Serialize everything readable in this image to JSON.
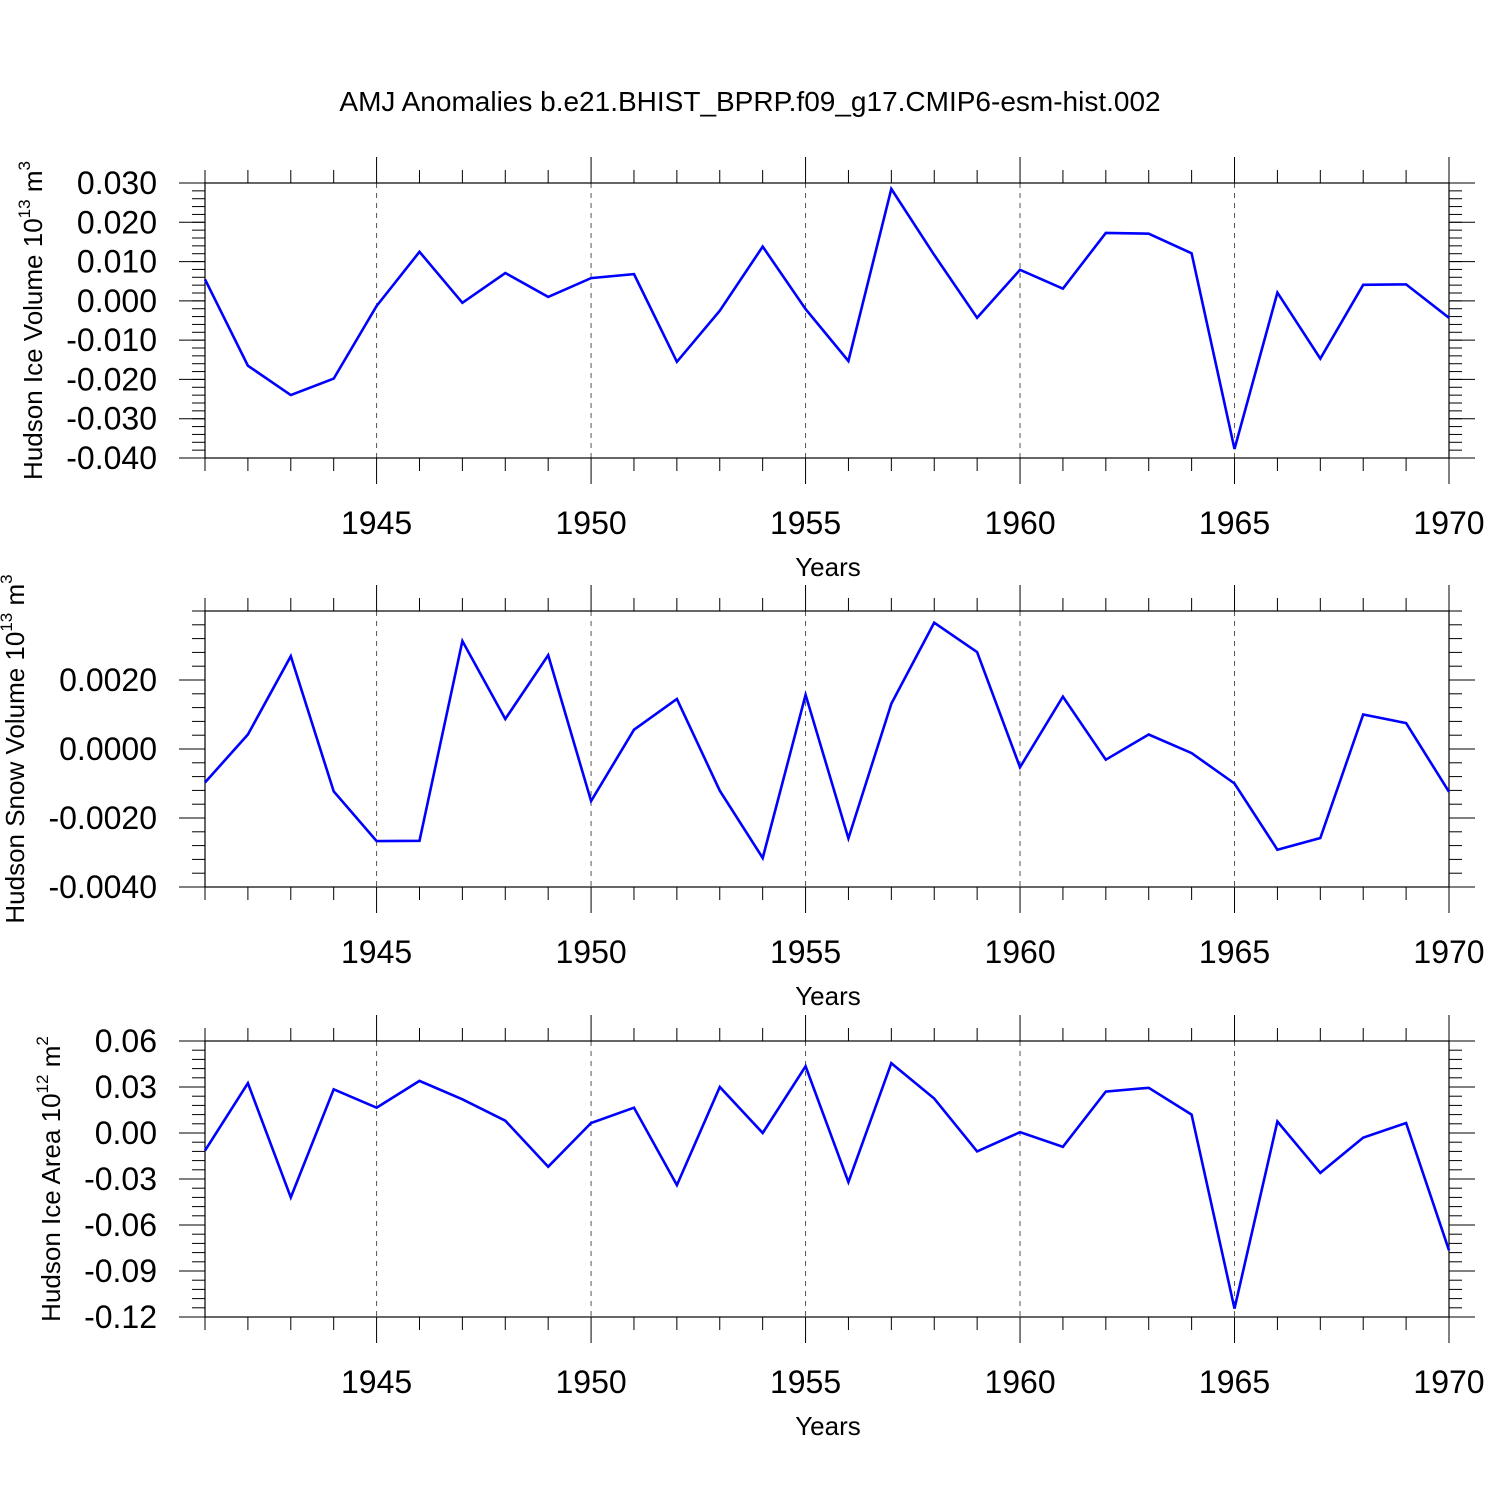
{
  "title": "AMJ Anomalies b.e21.BHIST_BPRP.f09_g17.CMIP6-esm-hist.002",
  "line_color": "#0000ff",
  "chart_data": [
    {
      "type": "line",
      "ylabel": {
        "text": "Hudson Ice Volume 10",
        "sup": "13",
        "unit": " m",
        "unit_sup": "3"
      },
      "xlabel": "Years",
      "xlim": [
        1941,
        1970
      ],
      "ylim": [
        -0.04,
        0.03
      ],
      "ytick_values": [
        -0.04,
        -0.03,
        -0.02,
        -0.01,
        0.0,
        0.01,
        0.02,
        0.03
      ],
      "ytick_labels": [
        "-0.040",
        "-0.030",
        "-0.020",
        "-0.010",
        "0.000",
        "0.010",
        "0.020",
        "0.030"
      ],
      "yminor_step": 0.002,
      "xticks": [
        1945,
        1950,
        1955,
        1960,
        1965,
        1970
      ],
      "x": [
        1941,
        1942,
        1943,
        1944,
        1945,
        1946,
        1947,
        1948,
        1949,
        1950,
        1951,
        1952,
        1953,
        1954,
        1955,
        1956,
        1957,
        1958,
        1959,
        1960,
        1961,
        1962,
        1963,
        1964,
        1965,
        1966,
        1967,
        1968,
        1969,
        1970
      ],
      "series": [
        {
          "values": [
            0.0055,
            -0.0165,
            -0.024,
            -0.0198,
            -0.0013,
            0.0125,
            -0.0005,
            0.0071,
            0.001,
            0.0058,
            0.0068,
            -0.0155,
            -0.0025,
            0.0138,
            -0.0021,
            -0.0153,
            0.0285,
            0.0117,
            -0.0043,
            0.0079,
            0.0031,
            0.0173,
            0.0171,
            0.0121,
            -0.0377,
            0.0021,
            -0.0147,
            0.0041,
            0.0042,
            -0.0043
          ]
        }
      ]
    },
    {
      "type": "line",
      "ylabel": {
        "text": "Hudson Snow Volume 10",
        "sup": "13",
        "unit": " m",
        "unit_sup": "3"
      },
      "xlabel": "Years",
      "xlim": [
        1941,
        1970
      ],
      "ylim": [
        -0.004,
        0.004
      ],
      "ytick_values": [
        -0.004,
        -0.002,
        0.0,
        0.002
      ],
      "ytick_labels": [
        "-0.0040",
        "-0.0020",
        "0.0000",
        "0.0020"
      ],
      "yminor_step": 0.0004,
      "xticks": [
        1945,
        1950,
        1955,
        1960,
        1965,
        1970
      ],
      "x": [
        1941,
        1942,
        1943,
        1944,
        1945,
        1946,
        1947,
        1948,
        1949,
        1950,
        1951,
        1952,
        1953,
        1954,
        1955,
        1956,
        1957,
        1958,
        1959,
        1960,
        1961,
        1962,
        1963,
        1964,
        1965,
        1966,
        1967,
        1968,
        1969,
        1970
      ],
      "series": [
        {
          "values": [
            -0.00097,
            0.00042,
            0.00269,
            -0.00123,
            -0.00267,
            -0.00266,
            0.00313,
            0.00087,
            0.00272,
            -0.00151,
            0.00056,
            0.00145,
            -0.00121,
            -0.00316,
            0.00157,
            -0.00259,
            0.00131,
            0.00366,
            0.00281,
            -0.00053,
            0.00152,
            -0.00031,
            0.00042,
            -0.00012,
            -0.001,
            -0.00292,
            -0.00258,
            0.001,
            0.00075,
            -0.00124
          ]
        }
      ]
    },
    {
      "type": "line",
      "ylabel": {
        "text": "Hudson Ice Area 10",
        "sup": "12",
        "unit": " m",
        "unit_sup": "2"
      },
      "xlabel": "Years",
      "xlim": [
        1941,
        1970
      ],
      "ylim": [
        -0.12,
        0.06
      ],
      "ytick_values": [
        -0.12,
        -0.09,
        -0.06,
        -0.03,
        0.0,
        0.03,
        0.06
      ],
      "ytick_labels": [
        "-0.12",
        "-0.09",
        "-0.06",
        "-0.03",
        "0.00",
        "0.03",
        "0.06"
      ],
      "yminor_step": 0.006,
      "xticks": [
        1945,
        1950,
        1955,
        1960,
        1965,
        1970
      ],
      "x": [
        1941,
        1942,
        1943,
        1944,
        1945,
        1946,
        1947,
        1948,
        1949,
        1950,
        1951,
        1952,
        1953,
        1954,
        1955,
        1956,
        1957,
        1958,
        1959,
        1960,
        1961,
        1962,
        1963,
        1964,
        1965,
        1966,
        1967,
        1968,
        1969,
        1970
      ],
      "series": [
        {
          "values": [
            -0.0115,
            0.0325,
            -0.042,
            0.0285,
            0.0165,
            0.034,
            0.022,
            0.008,
            -0.022,
            0.0065,
            0.0165,
            -0.034,
            0.03,
            0.0,
            0.0435,
            -0.032,
            0.0455,
            0.0225,
            -0.012,
            0.0005,
            -0.009,
            0.027,
            0.0295,
            0.012,
            -0.1145,
            0.0075,
            -0.026,
            -0.003,
            0.0065,
            -0.0765
          ]
        }
      ]
    }
  ]
}
